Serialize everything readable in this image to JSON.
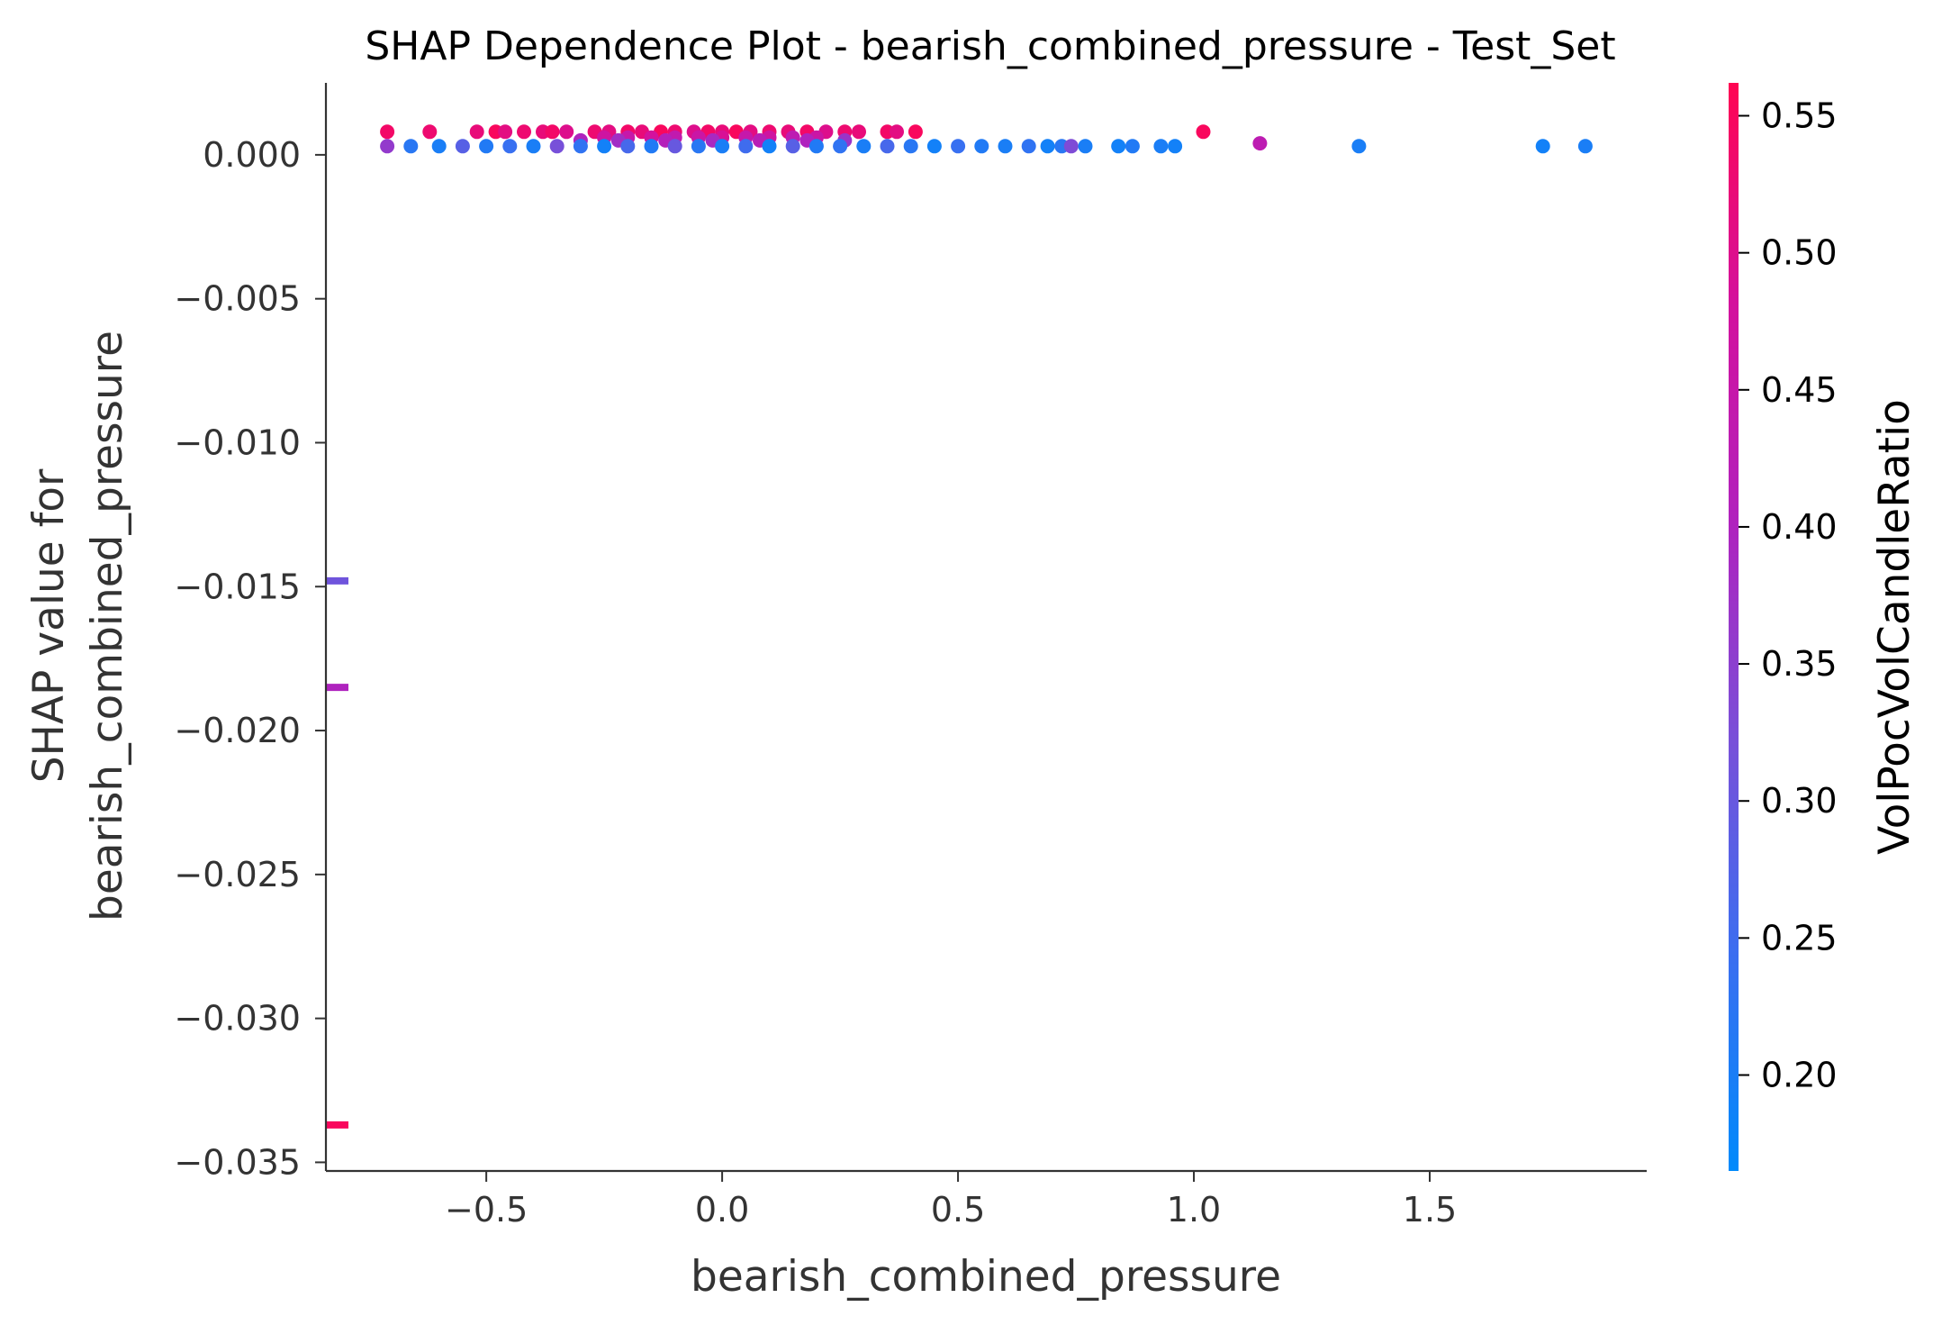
{
  "chart_data": {
    "type": "scatter",
    "title": "SHAP Dependence Plot - bearish_combined_pressure - Test_Set",
    "xlabel": "bearish_combined_pressure",
    "ylabel_lines": [
      "SHAP value for",
      "bearish_combined_pressure"
    ],
    "xlim": [
      -0.84,
      1.96
    ],
    "ylim": [
      -0.0353,
      0.0025
    ],
    "xticks": [
      -0.5,
      0.0,
      0.5,
      1.0,
      1.5
    ],
    "xtick_labels": [
      "−0.5",
      "0.0",
      "0.5",
      "1.0",
      "1.5"
    ],
    "yticks": [
      0.0,
      -0.005,
      -0.01,
      -0.015,
      -0.02,
      -0.025,
      -0.03,
      -0.035
    ],
    "ytick_labels": [
      "0.000",
      "−0.005",
      "−0.010",
      "−0.015",
      "−0.020",
      "−0.025",
      "−0.030",
      "−0.035"
    ],
    "grid": false,
    "colorbar": {
      "label": "VolPocVolCandleRatio",
      "range": [
        0.165,
        0.562
      ],
      "ticks": [
        0.2,
        0.25,
        0.3,
        0.35,
        0.4,
        0.45,
        0.5,
        0.55
      ],
      "tick_labels": [
        "0.20",
        "0.25",
        "0.30",
        "0.35",
        "0.40",
        "0.45",
        "0.50",
        "0.55"
      ],
      "colors": [
        "#008afb",
        "#3b6ef0",
        "#7a4fd8",
        "#b121bd",
        "#d4119c",
        "#ff0552"
      ]
    },
    "points": [
      [
        -0.71,
        0.0008,
        0.54
      ],
      [
        -0.62,
        0.0008,
        0.53
      ],
      [
        -0.52,
        0.0008,
        0.52
      ],
      [
        -0.48,
        0.0008,
        0.55
      ],
      [
        -0.46,
        0.0008,
        0.51
      ],
      [
        -0.42,
        0.0008,
        0.53
      ],
      [
        -0.38,
        0.0008,
        0.52
      ],
      [
        -0.36,
        0.0008,
        0.54
      ],
      [
        -0.33,
        0.0008,
        0.5
      ],
      [
        -0.27,
        0.0008,
        0.53
      ],
      [
        -0.24,
        0.0008,
        0.51
      ],
      [
        -0.2,
        0.0008,
        0.54
      ],
      [
        -0.17,
        0.0008,
        0.52
      ],
      [
        -0.13,
        0.0008,
        0.55
      ],
      [
        -0.1,
        0.0008,
        0.53
      ],
      [
        -0.06,
        0.0008,
        0.5
      ],
      [
        -0.03,
        0.0008,
        0.54
      ],
      [
        0.0,
        0.0008,
        0.52
      ],
      [
        0.03,
        0.0008,
        0.55
      ],
      [
        0.06,
        0.0008,
        0.51
      ],
      [
        0.1,
        0.0008,
        0.53
      ],
      [
        0.14,
        0.0008,
        0.52
      ],
      [
        0.18,
        0.0008,
        0.54
      ],
      [
        0.22,
        0.0008,
        0.5
      ],
      [
        0.26,
        0.0008,
        0.53
      ],
      [
        0.29,
        0.0008,
        0.52
      ],
      [
        0.35,
        0.0008,
        0.54
      ],
      [
        0.37,
        0.0008,
        0.51
      ],
      [
        0.41,
        0.0008,
        0.55
      ],
      [
        1.02,
        0.0008,
        0.55
      ],
      [
        -0.25,
        0.0006,
        0.47
      ],
      [
        -0.2,
        0.0006,
        0.45
      ],
      [
        -0.15,
        0.0006,
        0.48
      ],
      [
        -0.1,
        0.0006,
        0.44
      ],
      [
        -0.05,
        0.0006,
        0.46
      ],
      [
        0.0,
        0.0006,
        0.49
      ],
      [
        0.05,
        0.0006,
        0.45
      ],
      [
        0.1,
        0.0006,
        0.47
      ],
      [
        0.15,
        0.0006,
        0.43
      ],
      [
        0.2,
        0.0006,
        0.46
      ],
      [
        -0.3,
        0.0005,
        0.4
      ],
      [
        -0.22,
        0.0005,
        0.38
      ],
      [
        -0.12,
        0.0005,
        0.41
      ],
      [
        -0.02,
        0.0005,
        0.39
      ],
      [
        0.08,
        0.0005,
        0.42
      ],
      [
        0.18,
        0.0005,
        0.4
      ],
      [
        0.26,
        0.0005,
        0.37
      ],
      [
        1.14,
        0.0004,
        0.43
      ],
      [
        -0.71,
        0.0003,
        0.36
      ],
      [
        -0.66,
        0.0003,
        0.22
      ],
      [
        -0.6,
        0.0003,
        0.2
      ],
      [
        -0.55,
        0.0003,
        0.28
      ],
      [
        -0.5,
        0.0003,
        0.21
      ],
      [
        -0.45,
        0.0003,
        0.24
      ],
      [
        -0.4,
        0.0003,
        0.2
      ],
      [
        -0.35,
        0.0003,
        0.32
      ],
      [
        -0.3,
        0.0003,
        0.23
      ],
      [
        -0.25,
        0.0003,
        0.19
      ],
      [
        -0.2,
        0.0003,
        0.26
      ],
      [
        -0.15,
        0.0003,
        0.21
      ],
      [
        -0.1,
        0.0003,
        0.3
      ],
      [
        -0.05,
        0.0003,
        0.22
      ],
      [
        0.0,
        0.0003,
        0.2
      ],
      [
        0.05,
        0.0003,
        0.25
      ],
      [
        0.1,
        0.0003,
        0.19
      ],
      [
        0.15,
        0.0003,
        0.28
      ],
      [
        0.2,
        0.0003,
        0.21
      ],
      [
        0.25,
        0.0003,
        0.23
      ],
      [
        0.3,
        0.0003,
        0.2
      ],
      [
        0.35,
        0.0003,
        0.26
      ],
      [
        0.4,
        0.0003,
        0.22
      ],
      [
        0.45,
        0.0003,
        0.19
      ],
      [
        0.5,
        0.0003,
        0.24
      ],
      [
        0.55,
        0.0003,
        0.21
      ],
      [
        0.6,
        0.0003,
        0.2
      ],
      [
        0.65,
        0.0003,
        0.23
      ],
      [
        0.69,
        0.0003,
        0.19
      ],
      [
        0.72,
        0.0003,
        0.22
      ],
      [
        0.74,
        0.0003,
        0.33
      ],
      [
        0.77,
        0.0003,
        0.2
      ],
      [
        0.84,
        0.0003,
        0.19
      ],
      [
        0.87,
        0.0003,
        0.21
      ],
      [
        0.93,
        0.0003,
        0.2
      ],
      [
        0.96,
        0.0003,
        0.19
      ],
      [
        1.35,
        0.0003,
        0.2
      ],
      [
        1.74,
        0.0003,
        0.19
      ],
      [
        1.83,
        0.0003,
        0.2
      ]
    ],
    "missing_markers": [
      {
        "y": -0.0148,
        "c": 0.31
      },
      {
        "y": -0.0185,
        "c": 0.4
      },
      {
        "y": -0.0337,
        "c": 0.55
      }
    ]
  }
}
